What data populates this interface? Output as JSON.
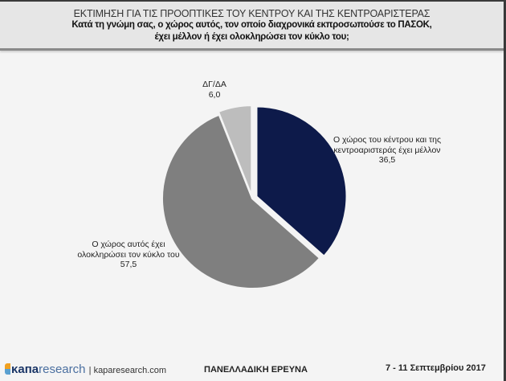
{
  "header": {
    "title": "ΕΚΤΙΜΗΣΗ ΓΙΑ ΤΙΣ ΠΡΟΟΠΤΙΚΕΣ ΤΟΥ ΚΕΝΤΡΟΥ ΚΑΙ ΤΗΣ ΚΕΝΤΡΟΑΡΙΣΤΕΡΑΣ",
    "question_line1": "Κατά τη γνώμη σας, ο  χώρος αυτός, τον οποίο διαχρονικά εκπροσωπούσε το ΠΑΣΟΚ,",
    "question_line2": "έχει μέλλον ή έχει ολοκληρώσει τον κύκλο του;"
  },
  "chart_data": {
    "type": "pie",
    "slices": [
      {
        "label": "Ο χώρος του κέντρου και της κεντροαριστεράς έχει μέλλον",
        "value": 36.5,
        "value_label": "36,5",
        "color": "#0d1a4a"
      },
      {
        "label": "Ο χώρος αυτός έχει ολοκληρώσει τον κύκλο του",
        "value": 57.5,
        "value_label": "57,5",
        "color": "#7f7f7f"
      },
      {
        "label": "ΔΓ/ΔΑ",
        "value": 6.0,
        "value_label": "6,0",
        "color": "#bdbdbd"
      }
    ]
  },
  "footer": {
    "logo_brand": "κапа",
    "logo_research": "research",
    "url": "kaparesearch.com",
    "survey": "ΠΑΝΕΛΛΑΔΙΚΗ ΕΡΕΥΝΑ",
    "date": "7 - 11 Σεπτεμβρίου 2017"
  }
}
